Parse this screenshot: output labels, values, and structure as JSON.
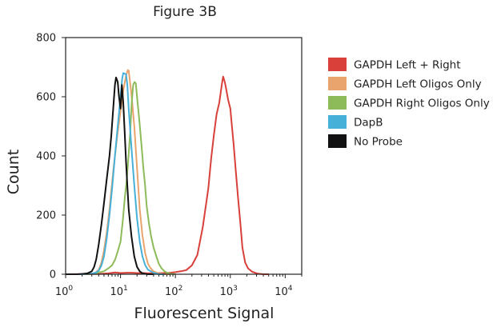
{
  "chart_data": {
    "type": "line",
    "title": "Figure 3B",
    "xlabel": "Fluorescent Signal",
    "ylabel": "Count",
    "x_scale": "log",
    "xlim": [
      1,
      20000
    ],
    "ylim": [
      0,
      800
    ],
    "x_ticks": [
      {
        "value": 1,
        "base": "10",
        "exp": "0"
      },
      {
        "value": 10,
        "base": "10",
        "exp": "1"
      },
      {
        "value": 100,
        "base": "10",
        "exp": "2"
      },
      {
        "value": 1000,
        "base": "10",
        "exp": "3"
      },
      {
        "value": 10000,
        "base": "10",
        "exp": "4"
      }
    ],
    "y_ticks": [
      "0",
      "200",
      "400",
      "600",
      "800"
    ],
    "grid": false,
    "legend_position": "right",
    "series": [
      {
        "name": "GAPDH Left + Right",
        "color": "#d9403a",
        "points": [
          [
            1,
            0
          ],
          [
            4,
            1
          ],
          [
            6,
            3
          ],
          [
            8,
            6
          ],
          [
            10,
            4
          ],
          [
            13,
            5
          ],
          [
            16,
            5
          ],
          [
            20,
            4
          ],
          [
            25,
            4
          ],
          [
            32,
            3
          ],
          [
            40,
            4
          ],
          [
            50,
            4
          ],
          [
            63,
            4
          ],
          [
            80,
            5
          ],
          [
            100,
            7
          ],
          [
            126,
            10
          ],
          [
            158,
            14
          ],
          [
            200,
            30
          ],
          [
            251,
            65
          ],
          [
            316,
            160
          ],
          [
            398,
            290
          ],
          [
            447,
            390
          ],
          [
            501,
            470
          ],
          [
            562,
            540
          ],
          [
            631,
            580
          ],
          [
            700,
            640
          ],
          [
            741,
            668
          ],
          [
            794,
            650
          ],
          [
            851,
            620
          ],
          [
            912,
            590
          ],
          [
            1000,
            560
          ],
          [
            1072,
            500
          ],
          [
            1148,
            440
          ],
          [
            1259,
            350
          ],
          [
            1380,
            260
          ],
          [
            1514,
            180
          ],
          [
            1660,
            90
          ],
          [
            1862,
            40
          ],
          [
            2100,
            20
          ],
          [
            2512,
            8
          ],
          [
            3162,
            2
          ],
          [
            3981,
            0
          ],
          [
            5000,
            0
          ]
        ]
      },
      {
        "name": "GAPDH Left Oligos Only",
        "color": "#e8a46c",
        "points": [
          [
            1,
            0
          ],
          [
            2,
            0
          ],
          [
            3,
            2
          ],
          [
            3.5,
            5
          ],
          [
            4,
            15
          ],
          [
            4.5,
            40
          ],
          [
            5,
            80
          ],
          [
            5.6,
            140
          ],
          [
            6.3,
            220
          ],
          [
            7.1,
            320
          ],
          [
            7.9,
            400
          ],
          [
            8.9,
            480
          ],
          [
            10,
            550
          ],
          [
            11.2,
            620
          ],
          [
            12.6,
            672
          ],
          [
            13.6,
            690
          ],
          [
            14.1,
            688
          ],
          [
            15.8,
            610
          ],
          [
            17.8,
            500
          ],
          [
            20,
            360
          ],
          [
            22.4,
            220
          ],
          [
            25.1,
            130
          ],
          [
            28.2,
            70
          ],
          [
            31.6,
            35
          ],
          [
            35.5,
            20
          ],
          [
            39.8,
            10
          ],
          [
            50,
            3
          ],
          [
            63,
            0
          ],
          [
            80,
            0
          ]
        ]
      },
      {
        "name": "GAPDH Right Oligos Only",
        "color": "#8dbb5a",
        "points": [
          [
            1,
            0
          ],
          [
            2,
            0
          ],
          [
            3,
            1
          ],
          [
            3.5,
            3
          ],
          [
            4,
            6
          ],
          [
            5,
            10
          ],
          [
            6,
            20
          ],
          [
            7,
            30
          ],
          [
            8,
            50
          ],
          [
            9,
            80
          ],
          [
            10,
            110
          ],
          [
            11,
            180
          ],
          [
            12,
            260
          ],
          [
            13,
            320
          ],
          [
            14,
            400
          ],
          [
            15,
            480
          ],
          [
            16,
            580
          ],
          [
            17,
            640
          ],
          [
            18,
            650
          ],
          [
            19,
            645
          ],
          [
            20,
            600
          ],
          [
            22,
            520
          ],
          [
            24,
            440
          ],
          [
            26,
            360
          ],
          [
            28,
            300
          ],
          [
            30,
            230
          ],
          [
            33,
            170
          ],
          [
            36,
            130
          ],
          [
            40,
            90
          ],
          [
            45,
            60
          ],
          [
            50,
            35
          ],
          [
            56,
            20
          ],
          [
            63,
            10
          ],
          [
            71,
            5
          ],
          [
            80,
            2
          ],
          [
            90,
            1
          ],
          [
            100,
            0
          ]
        ]
      },
      {
        "name": "DapB",
        "color": "#46b0d8",
        "points": [
          [
            1,
            0
          ],
          [
            2,
            0
          ],
          [
            3,
            2
          ],
          [
            3.5,
            5
          ],
          [
            4,
            12
          ],
          [
            4.5,
            30
          ],
          [
            5,
            60
          ],
          [
            5.6,
            120
          ],
          [
            6.3,
            200
          ],
          [
            7.1,
            300
          ],
          [
            7.9,
            400
          ],
          [
            8.9,
            500
          ],
          [
            10,
            600
          ],
          [
            10.7,
            660
          ],
          [
            11.2,
            680
          ],
          [
            12.6,
            676
          ],
          [
            13.3,
            640
          ],
          [
            14.1,
            560
          ],
          [
            15.8,
            430
          ],
          [
            17.8,
            300
          ],
          [
            20,
            190
          ],
          [
            22.4,
            110
          ],
          [
            25.1,
            60
          ],
          [
            28.2,
            30
          ],
          [
            31.6,
            15
          ],
          [
            40,
            5
          ],
          [
            50,
            0
          ],
          [
            63,
            0
          ]
        ]
      },
      {
        "name": "No Probe",
        "color": "#111111",
        "points": [
          [
            1,
            0
          ],
          [
            1.6,
            0
          ],
          [
            2,
            1
          ],
          [
            2.5,
            3
          ],
          [
            3,
            10
          ],
          [
            3.3,
            25
          ],
          [
            3.6,
            50
          ],
          [
            4,
            100
          ],
          [
            4.5,
            170
          ],
          [
            5,
            240
          ],
          [
            5.6,
            320
          ],
          [
            6.3,
            400
          ],
          [
            6.8,
            470
          ],
          [
            7.1,
            520
          ],
          [
            7.5,
            580
          ],
          [
            7.9,
            640
          ],
          [
            8.3,
            665
          ],
          [
            8.9,
            650
          ],
          [
            9.4,
            600
          ],
          [
            10,
            560
          ],
          [
            10.6,
            640
          ],
          [
            11.2,
            580
          ],
          [
            11.9,
            480
          ],
          [
            12.6,
            380
          ],
          [
            13.3,
            300
          ],
          [
            14.1,
            220
          ],
          [
            15.8,
            130
          ],
          [
            17.8,
            60
          ],
          [
            20,
            25
          ],
          [
            22.4,
            10
          ],
          [
            25.1,
            3
          ],
          [
            31.6,
            0
          ],
          [
            40,
            0
          ]
        ]
      }
    ]
  }
}
